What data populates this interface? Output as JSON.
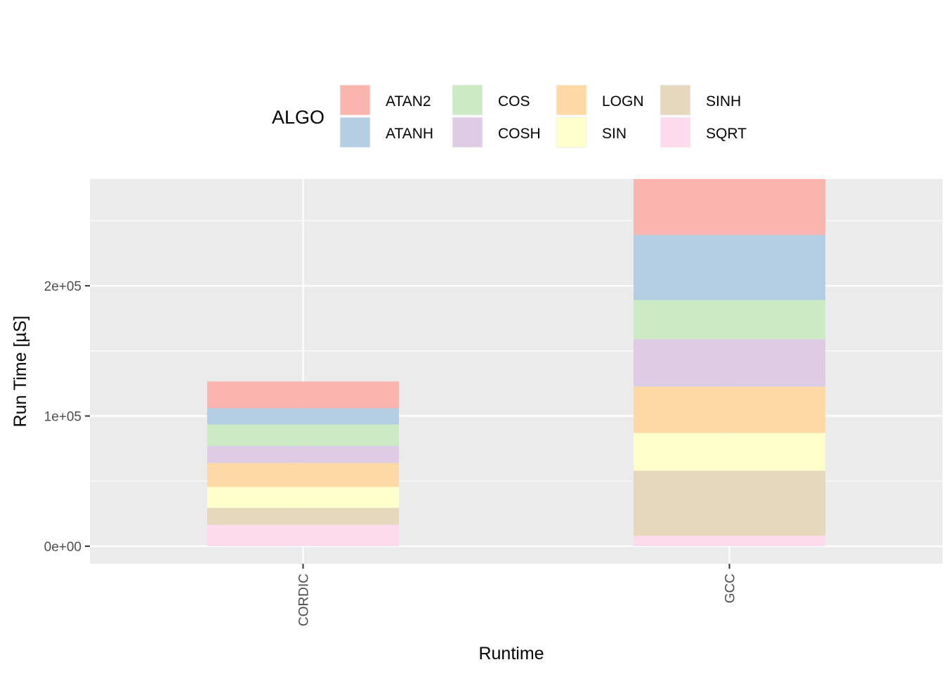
{
  "chart_data": {
    "type": "bar",
    "stacked": true,
    "xlabel": "Runtime",
    "ylabel": "Run Time [µS]",
    "categories": [
      "CORDIC",
      "GCC"
    ],
    "ylim": [
      -13500,
      282000
    ],
    "yticks": [
      0,
      100000,
      200000
    ],
    "ytick_labels": [
      "0e+00",
      "1e+05",
      "2e+05"
    ],
    "grid": true,
    "legend": {
      "title": "ALGO",
      "position": "top",
      "entries": [
        "ATAN2",
        "ATANH",
        "COS",
        "COSH",
        "LOGN",
        "SIN",
        "SINH",
        "SQRT"
      ]
    },
    "series": [
      {
        "name": "SQRT",
        "color": "#FDDAEC",
        "values": [
          16500,
          8000
        ]
      },
      {
        "name": "SINH",
        "color": "#E5D8BD",
        "values": [
          13000,
          50000
        ]
      },
      {
        "name": "SIN",
        "color": "#FFFFCC",
        "values": [
          16000,
          29000
        ]
      },
      {
        "name": "LOGN",
        "color": "#FED9A6",
        "values": [
          18500,
          35500
        ]
      },
      {
        "name": "COSH",
        "color": "#DECBE4",
        "values": [
          13000,
          36500
        ]
      },
      {
        "name": "COS",
        "color": "#CCEBC5",
        "values": [
          16500,
          30000
        ]
      },
      {
        "name": "ATANH",
        "color": "#B3CDE3",
        "values": [
          12500,
          50000
        ]
      },
      {
        "name": "ATAN2",
        "color": "#FBB4AE",
        "values": [
          20500,
          43000
        ]
      }
    ]
  }
}
